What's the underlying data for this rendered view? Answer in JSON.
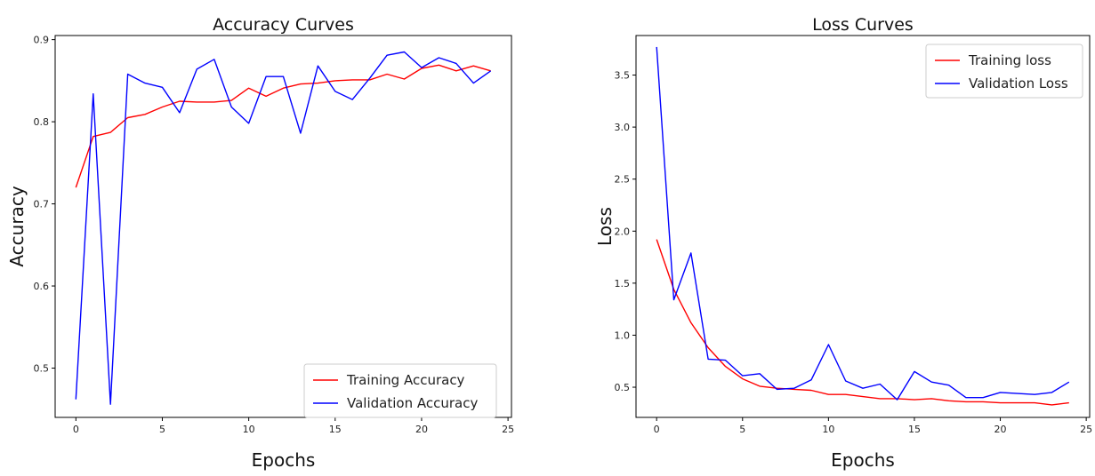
{
  "chart_data": [
    {
      "type": "line",
      "title": "Accuracy Curves",
      "xlabel": "Epochs",
      "ylabel": "Accuracy",
      "xlim": [
        -1.2,
        25.2
      ],
      "ylim": [
        0.44,
        0.905
      ],
      "xticks": [
        0,
        5,
        10,
        15,
        20,
        25
      ],
      "yticks": [
        0.5,
        0.6,
        0.7,
        0.8,
        0.9
      ],
      "x": [
        0,
        1,
        2,
        3,
        4,
        5,
        6,
        7,
        8,
        9,
        10,
        11,
        12,
        13,
        14,
        15,
        16,
        17,
        18,
        19,
        20,
        21,
        22,
        23,
        24
      ],
      "legend_position": "lower-right",
      "series": [
        {
          "name": "Training Accuracy",
          "color": "#ff0000",
          "values": [
            0.72,
            0.782,
            0.787,
            0.805,
            0.809,
            0.818,
            0.825,
            0.824,
            0.824,
            0.826,
            0.841,
            0.831,
            0.841,
            0.846,
            0.847,
            0.85,
            0.851,
            0.851,
            0.858,
            0.852,
            0.865,
            0.869,
            0.862,
            0.868,
            0.862
          ]
        },
        {
          "name": "Validation Accuracy",
          "color": "#0000ff",
          "values": [
            0.462,
            0.834,
            0.456,
            0.858,
            0.847,
            0.842,
            0.811,
            0.864,
            0.876,
            0.818,
            0.798,
            0.855,
            0.855,
            0.786,
            0.868,
            0.837,
            0.827,
            0.853,
            0.881,
            0.885,
            0.866,
            0.878,
            0.871,
            0.847,
            0.862
          ]
        }
      ]
    },
    {
      "type": "line",
      "title": "Loss Curves",
      "xlabel": "Epochs",
      "ylabel": "Loss",
      "xlim": [
        -1.2,
        25.2
      ],
      "ylim": [
        0.21,
        3.88
      ],
      "xticks": [
        0,
        5,
        10,
        15,
        20,
        25
      ],
      "yticks": [
        0.5,
        1.0,
        1.5,
        2.0,
        2.5,
        3.0,
        3.5
      ],
      "x": [
        0,
        1,
        2,
        3,
        4,
        5,
        6,
        7,
        8,
        9,
        10,
        11,
        12,
        13,
        14,
        15,
        16,
        17,
        18,
        19,
        20,
        21,
        22,
        23,
        24
      ],
      "legend_position": "upper-right",
      "series": [
        {
          "name": "Training loss",
          "color": "#ff0000",
          "values": [
            1.92,
            1.44,
            1.12,
            0.88,
            0.7,
            0.58,
            0.51,
            0.49,
            0.48,
            0.47,
            0.43,
            0.43,
            0.41,
            0.39,
            0.39,
            0.38,
            0.39,
            0.37,
            0.36,
            0.36,
            0.35,
            0.35,
            0.35,
            0.33,
            0.35
          ]
        },
        {
          "name": "Validation Loss",
          "color": "#0000ff",
          "values": [
            3.77,
            1.34,
            1.79,
            0.77,
            0.76,
            0.61,
            0.63,
            0.48,
            0.49,
            0.57,
            0.91,
            0.56,
            0.49,
            0.53,
            0.38,
            0.65,
            0.55,
            0.52,
            0.4,
            0.4,
            0.45,
            0.44,
            0.43,
            0.45,
            0.55
          ]
        }
      ]
    }
  ]
}
